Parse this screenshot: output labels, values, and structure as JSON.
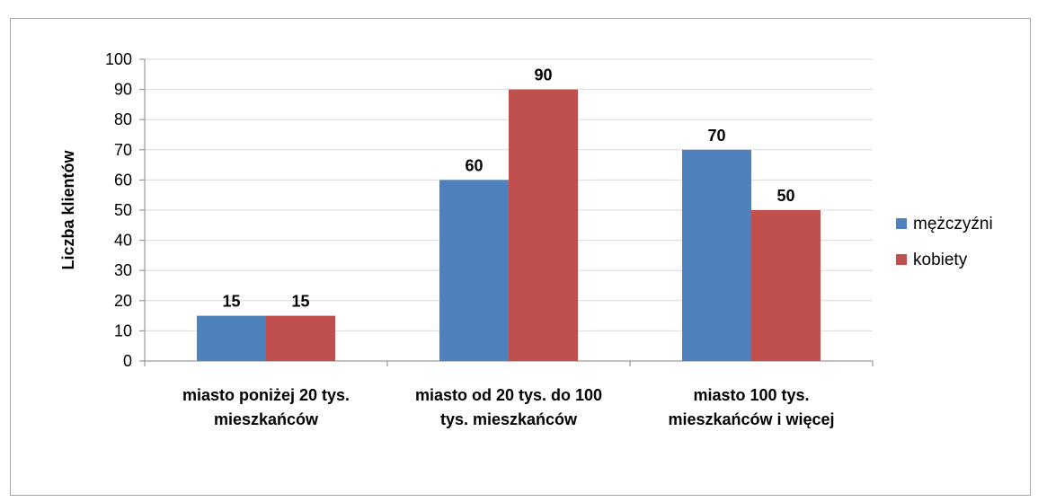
{
  "chart_data": {
    "type": "bar",
    "categories": [
      [
        "miasto poniżej 20 tys.",
        "mieszkańców"
      ],
      [
        "miasto od 20 tys. do 100",
        "tys. mieszkańców"
      ],
      [
        "miasto 100 tys.",
        "mieszkańców i więcej"
      ]
    ],
    "series": [
      {
        "name": "mężczyźni",
        "color": "#4f81bd",
        "values": [
          15,
          60,
          70
        ]
      },
      {
        "name": "kobiety",
        "color": "#c0504d",
        "values": [
          15,
          90,
          50
        ]
      }
    ],
    "ylabel": "Liczba klientów",
    "ylim": [
      0,
      100
    ],
    "yticks": [
      0,
      10,
      20,
      30,
      40,
      50,
      60,
      70,
      80,
      90,
      100
    ],
    "grid": true,
    "legend": "right",
    "data_labels": true
  }
}
